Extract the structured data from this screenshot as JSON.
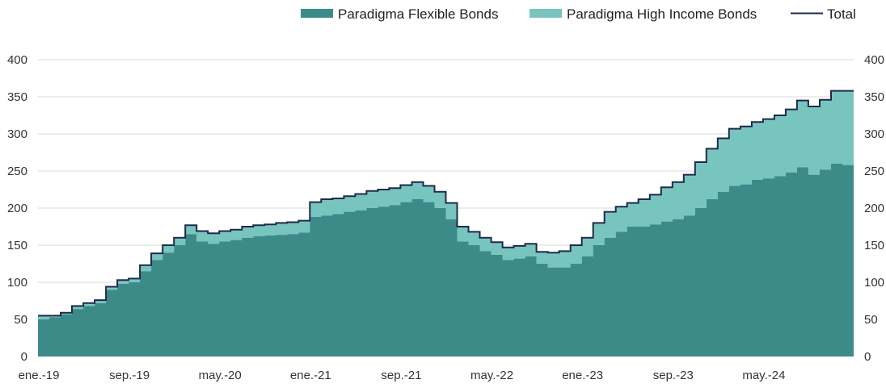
{
  "chart_data": {
    "type": "area",
    "stacked": true,
    "title": "",
    "xlabel": "",
    "ylabel": "",
    "ylim": [
      0,
      400
    ],
    "yticks": [
      0,
      50,
      100,
      150,
      200,
      250,
      300,
      350,
      400
    ],
    "dual_y_axis": true,
    "grid": "horizontal",
    "legend": "top-right",
    "x_ticks": [
      "ene.-19",
      "sep.-19",
      "may.-20",
      "ene.-21",
      "sep.-21",
      "may.-22",
      "ene.-23",
      "sep.-23",
      "may.-24"
    ],
    "x_tick_months": [
      "2019-01",
      "2019-09",
      "2020-05",
      "2021-01",
      "2021-09",
      "2022-05",
      "2023-01",
      "2023-09",
      "2024-05"
    ],
    "x_range": [
      "2019-01",
      "2024-12"
    ],
    "dates": [
      "2019-01",
      "2019-02",
      "2019-03",
      "2019-04",
      "2019-05",
      "2019-06",
      "2019-07",
      "2019-08",
      "2019-09",
      "2019-10",
      "2019-11",
      "2019-12",
      "2020-01",
      "2020-02",
      "2020-03",
      "2020-04",
      "2020-05",
      "2020-06",
      "2020-07",
      "2020-08",
      "2020-09",
      "2020-10",
      "2020-11",
      "2020-12",
      "2021-01",
      "2021-02",
      "2021-03",
      "2021-04",
      "2021-05",
      "2021-06",
      "2021-07",
      "2021-08",
      "2021-09",
      "2021-10",
      "2021-11",
      "2021-12",
      "2022-01",
      "2022-02",
      "2022-03",
      "2022-04",
      "2022-05",
      "2022-06",
      "2022-07",
      "2022-08",
      "2022-09",
      "2022-10",
      "2022-11",
      "2022-12",
      "2023-01",
      "2023-02",
      "2023-03",
      "2023-04",
      "2023-05",
      "2023-06",
      "2023-07",
      "2023-08",
      "2023-09",
      "2023-10",
      "2023-11",
      "2023-12",
      "2024-01",
      "2024-02",
      "2024-03",
      "2024-04",
      "2024-05",
      "2024-06",
      "2024-07",
      "2024-08",
      "2024-09",
      "2024-10",
      "2024-11",
      "2024-12"
    ],
    "series": [
      {
        "name": "Paradigma Flexible Bonds",
        "color": "#3d8b88",
        "values": [
          50,
          53,
          57,
          64,
          68,
          72,
          90,
          98,
          100,
          115,
          130,
          140,
          150,
          165,
          155,
          152,
          155,
          157,
          160,
          162,
          163,
          164,
          165,
          167,
          188,
          190,
          192,
          195,
          197,
          200,
          202,
          204,
          208,
          212,
          208,
          200,
          185,
          155,
          150,
          142,
          137,
          130,
          132,
          135,
          125,
          120,
          120,
          125,
          135,
          150,
          160,
          168,
          175,
          175,
          178,
          182,
          185,
          190,
          200,
          212,
          222,
          230,
          232,
          238,
          240,
          243,
          248,
          255,
          245,
          252,
          260,
          258
        ]
      },
      {
        "name": "Paradigma High Income Bonds",
        "color": "#78c5bf",
        "values": [
          5,
          2,
          2,
          4,
          4,
          4,
          4,
          5,
          5,
          8,
          9,
          10,
          10,
          12,
          14,
          14,
          14,
          14,
          15,
          15,
          15,
          16,
          16,
          16,
          20,
          22,
          21,
          21,
          22,
          23,
          23,
          23,
          23,
          23,
          22,
          22,
          22,
          20,
          18,
          18,
          17,
          17,
          17,
          17,
          16,
          20,
          22,
          25,
          25,
          30,
          35,
          34,
          32,
          37,
          40,
          46,
          50,
          55,
          62,
          68,
          72,
          77,
          78,
          78,
          80,
          82,
          85,
          90,
          92,
          94,
          98,
          100
        ]
      },
      {
        "name": "Total",
        "color": "#1f2a4a",
        "values": [
          55,
          55,
          59,
          68,
          72,
          76,
          94,
          103,
          105,
          123,
          139,
          150,
          160,
          177,
          169,
          166,
          169,
          171,
          175,
          177,
          178,
          180,
          181,
          183,
          208,
          212,
          213,
          216,
          219,
          223,
          225,
          227,
          231,
          235,
          230,
          222,
          207,
          175,
          168,
          160,
          154,
          147,
          149,
          152,
          141,
          140,
          142,
          150,
          160,
          180,
          195,
          202,
          207,
          212,
          218,
          228,
          235,
          245,
          262,
          280,
          294,
          307,
          310,
          316,
          320,
          325,
          333,
          345,
          337,
          346,
          358,
          358
        ]
      }
    ]
  }
}
